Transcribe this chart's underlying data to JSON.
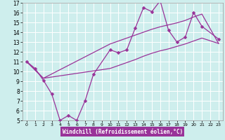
{
  "xlabel": "Windchill (Refroidissement éolien,°C)",
  "xlim": [
    -0.5,
    23.5
  ],
  "ylim": [
    5,
    17
  ],
  "xticks": [
    0,
    1,
    2,
    3,
    4,
    5,
    6,
    7,
    8,
    9,
    10,
    11,
    12,
    13,
    14,
    15,
    16,
    17,
    18,
    19,
    20,
    21,
    22,
    23
  ],
  "yticks": [
    5,
    6,
    7,
    8,
    9,
    10,
    11,
    12,
    13,
    14,
    15,
    16,
    17
  ],
  "bg_color": "#ceeeed",
  "grid_color": "#ffffff",
  "line_color": "#993399",
  "line1_x": [
    0,
    1,
    2,
    3,
    4,
    5,
    6,
    7,
    8,
    10,
    11,
    12,
    13,
    14,
    15,
    16,
    17,
    18,
    19,
    20,
    21,
    23
  ],
  "line1_y": [
    11.0,
    10.3,
    9.1,
    7.7,
    5.0,
    5.5,
    5.0,
    7.0,
    9.7,
    12.2,
    11.9,
    12.2,
    14.4,
    16.5,
    16.1,
    17.2,
    14.2,
    13.0,
    13.5,
    16.0,
    14.6,
    13.3
  ],
  "line2_x": [
    0,
    2,
    10,
    11,
    12,
    13,
    14,
    15,
    16,
    17,
    18,
    19,
    20,
    21,
    23
  ],
  "line2_y": [
    11.0,
    9.3,
    12.8,
    13.1,
    13.4,
    13.7,
    14.0,
    14.3,
    14.55,
    14.75,
    14.95,
    15.2,
    15.55,
    15.85,
    12.85
  ],
  "line3_x": [
    0,
    2,
    10,
    11,
    12,
    13,
    14,
    15,
    16,
    17,
    18,
    19,
    20,
    21,
    23
  ],
  "line3_y": [
    11.0,
    9.3,
    10.3,
    10.6,
    10.9,
    11.2,
    11.55,
    11.85,
    12.1,
    12.3,
    12.55,
    12.8,
    13.1,
    13.4,
    12.85
  ],
  "lw_main": 0.9,
  "lw_env": 0.9,
  "markersize": 2.5,
  "xlabel_fontsize": 5.5,
  "tick_fontsize_x": 4.5,
  "tick_fontsize_y": 5.5
}
